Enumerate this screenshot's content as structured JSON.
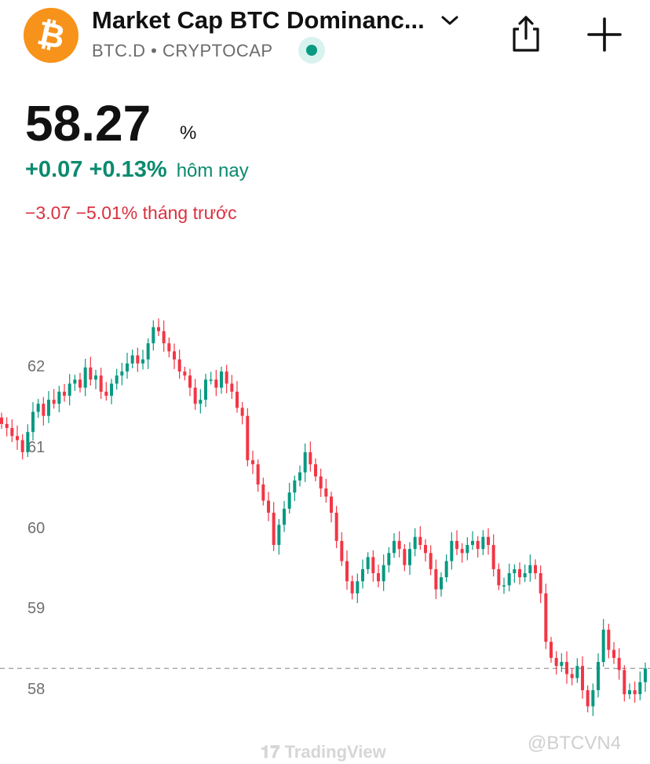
{
  "header": {
    "logo_glyph": "₿",
    "title": "Market Cap BTC Dominanc...",
    "ticker": "BTC.D",
    "exchange": "CRYPTOCAP",
    "separator": "•",
    "brand_color": "#f7931a",
    "status_color": "#089981"
  },
  "quote": {
    "price": "58.27",
    "unit": "%",
    "today_change": "+0.07",
    "today_change_pct": "+0.13%",
    "today_label": "hôm nay",
    "month_change": "−3.07",
    "month_change_pct": "−5.01%",
    "month_label": "tháng trước",
    "up_color": "#0b8a6f",
    "down_color": "#d9303f"
  },
  "chart_data": {
    "type": "candlestick",
    "y_ticks": [
      "62",
      "61",
      "60",
      "59",
      "58"
    ],
    "ylim": [
      57.6,
      62.6
    ],
    "last_price_line": 58.27,
    "grid": false,
    "up_color": "#089981",
    "down_color": "#f23645",
    "closes": [
      61.3,
      61.25,
      61.15,
      61.1,
      60.95,
      61.2,
      61.45,
      61.55,
      61.4,
      61.6,
      61.55,
      61.7,
      61.65,
      61.8,
      61.85,
      61.75,
      62.0,
      61.85,
      61.9,
      61.7,
      61.65,
      61.8,
      61.9,
      61.95,
      62.05,
      62.15,
      62.05,
      62.1,
      62.3,
      62.5,
      62.45,
      62.3,
      62.2,
      62.1,
      61.95,
      61.9,
      61.75,
      61.55,
      61.6,
      61.85,
      61.85,
      61.75,
      61.95,
      61.8,
      61.7,
      61.5,
      61.4,
      60.85,
      60.8,
      60.55,
      60.35,
      60.2,
      59.8,
      60.05,
      60.25,
      60.45,
      60.6,
      60.7,
      60.95,
      60.8,
      60.65,
      60.5,
      60.4,
      60.2,
      59.85,
      59.6,
      59.35,
      59.2,
      59.35,
      59.5,
      59.65,
      59.45,
      59.35,
      59.55,
      59.7,
      59.85,
      59.75,
      59.55,
      59.75,
      59.9,
      59.8,
      59.7,
      59.5,
      59.25,
      59.4,
      59.6,
      59.85,
      59.75,
      59.7,
      59.8,
      59.85,
      59.75,
      59.9,
      59.8,
      59.5,
      59.3,
      59.3,
      59.45,
      59.5,
      59.4,
      59.45,
      59.55,
      59.45,
      59.2,
      58.6,
      58.4,
      58.3,
      58.35,
      58.2,
      58.15,
      58.3,
      58.0,
      57.8,
      58.0,
      58.35,
      58.75,
      58.5,
      58.4,
      58.25,
      57.95,
      58.0,
      57.95,
      58.1,
      58.27
    ],
    "series_label": "BTC.D"
  },
  "footer": {
    "brand": "TradingView",
    "watermark": "@BTCVN4"
  }
}
